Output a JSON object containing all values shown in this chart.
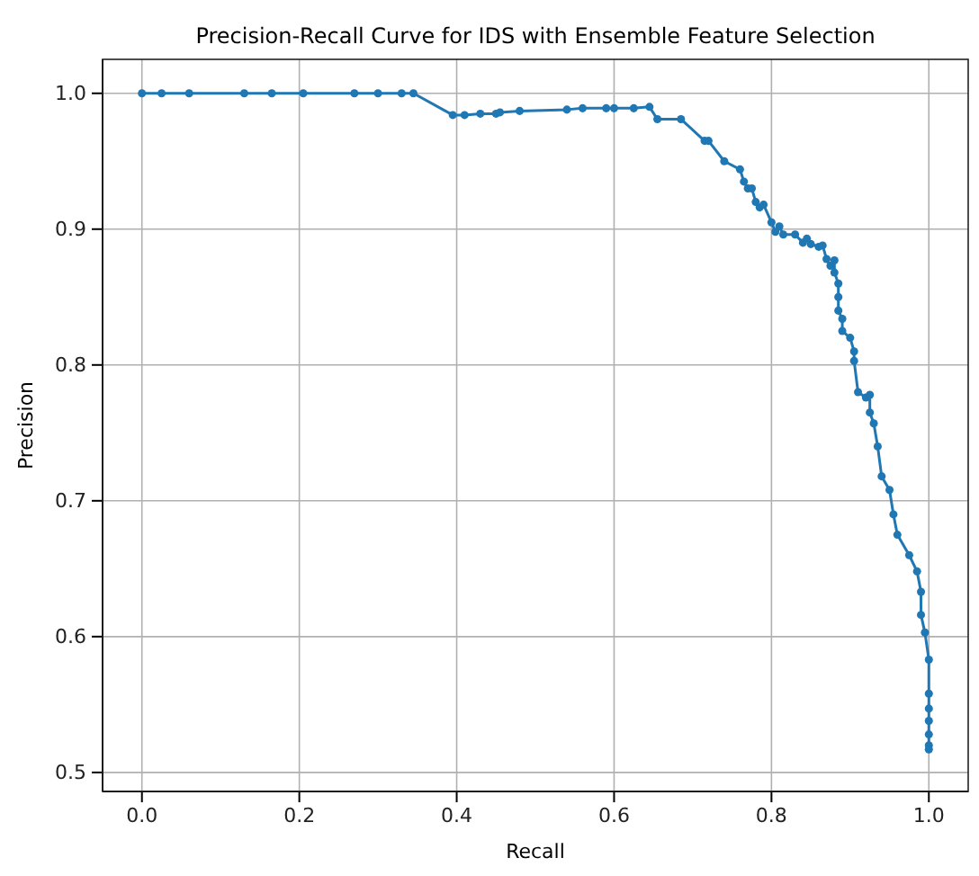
{
  "chart_data": {
    "type": "line",
    "title": "Precision-Recall Curve for IDS with Ensemble Feature Selection",
    "xlabel": "Recall",
    "ylabel": "Precision",
    "marker": "circle",
    "grid": true,
    "xlim": [
      -0.05,
      1.05
    ],
    "ylim": [
      0.486,
      1.025
    ],
    "xticks": [
      {
        "value": 0,
        "label": "0.0"
      },
      0.2,
      0.4,
      0.6,
      0.8,
      {
        "value": 1,
        "label": "1.0"
      }
    ],
    "yticks": [
      0.5,
      0.6,
      0.7,
      0.8,
      0.9,
      {
        "value": 1,
        "label": "1.0"
      }
    ],
    "series": [
      {
        "color": "#1f77b4",
        "x": [
          0,
          0.025,
          0.06,
          0.13,
          0.165,
          0.205,
          0.27,
          0.3,
          0.33,
          0.345,
          0.395,
          0.41,
          0.43,
          0.45,
          0.455,
          0.48,
          0.54,
          0.56,
          0.59,
          0.6,
          0.625,
          0.645,
          0.655,
          0.685,
          0.715,
          0.72,
          0.74,
          0.76,
          0.765,
          0.77,
          0.775,
          0.78,
          0.785,
          0.79,
          0.8,
          0.805,
          0.81,
          0.815,
          0.83,
          0.84,
          0.845,
          0.85,
          0.86,
          0.865,
          0.87,
          0.875,
          0.88,
          0.88,
          0.885,
          0.885,
          0.885,
          0.89,
          0.89,
          0.9,
          0.905,
          0.905,
          0.91,
          0.92,
          0.925,
          0.925,
          0.93,
          0.935,
          0.94,
          0.95,
          0.955,
          0.96,
          0.975,
          0.985,
          0.99,
          0.99,
          0.995,
          1,
          1,
          1,
          1,
          1,
          1,
          1
        ],
        "values": [
          1,
          1,
          1,
          1,
          1,
          1,
          1,
          1,
          1,
          1,
          0.984,
          0.984,
          0.985,
          0.985,
          0.986,
          0.987,
          0.988,
          0.989,
          0.989,
          0.989,
          0.989,
          0.99,
          0.981,
          0.981,
          0.965,
          0.965,
          0.95,
          0.944,
          0.935,
          0.93,
          0.93,
          0.92,
          0.916,
          0.918,
          0.905,
          0.898,
          0.902,
          0.896,
          0.896,
          0.89,
          0.893,
          0.889,
          0.887,
          0.888,
          0.878,
          0.873,
          0.877,
          0.868,
          0.86,
          0.85,
          0.84,
          0.834,
          0.825,
          0.82,
          0.81,
          0.803,
          0.78,
          0.776,
          0.778,
          0.765,
          0.757,
          0.74,
          0.718,
          0.708,
          0.69,
          0.675,
          0.66,
          0.648,
          0.633,
          0.616,
          0.603,
          0.583,
          0.558,
          0.547,
          0.538,
          0.528,
          0.52,
          0.517
        ]
      }
    ]
  }
}
